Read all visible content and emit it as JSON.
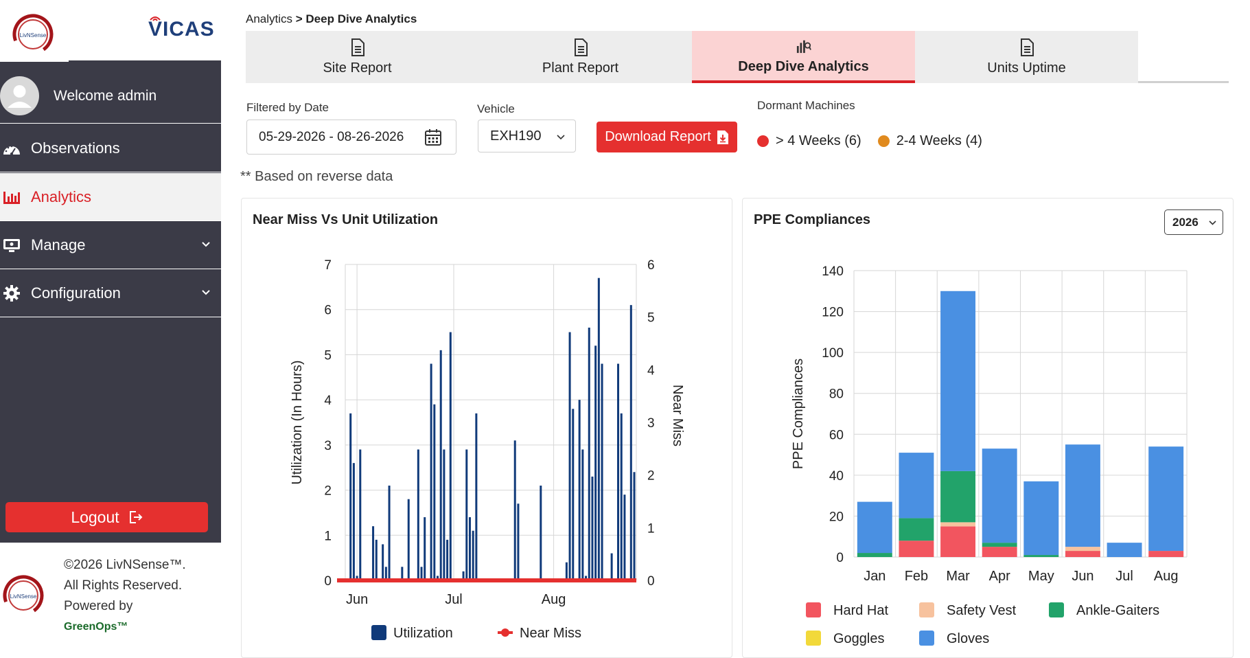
{
  "brand": {
    "logo_text": "LivNSense",
    "app_name": "VICAS"
  },
  "sidebar": {
    "welcome": "Welcome admin",
    "items": [
      {
        "label": "Observations",
        "icon": "speedometer-icon",
        "active": false
      },
      {
        "label": "Analytics",
        "icon": "bar-chart-icon",
        "active": true
      },
      {
        "label": "Manage",
        "icon": "monitor-icon",
        "active": false
      },
      {
        "label": "Configuration",
        "icon": "gear-icon",
        "active": false
      }
    ],
    "logout": "Logout",
    "footer": {
      "copyright": "©2026 LivNSense™.",
      "rights": "All Rights Reserved.",
      "powered": "Powered by",
      "greenops": "GreenOps™"
    }
  },
  "breadcrumb": {
    "parent": "Analytics",
    "separator": " > ",
    "current": "Deep Dive Analytics"
  },
  "tabs": [
    {
      "label": "Site Report",
      "active": false
    },
    {
      "label": "Plant Report",
      "active": false
    },
    {
      "label": "Deep Dive Analytics",
      "active": true
    },
    {
      "label": "Units Uptime",
      "active": false
    }
  ],
  "filters": {
    "date_label": "Filtered by Date",
    "date_value": "05-29-2026 - 08-26-2026",
    "vehicle_label": "Vehicle",
    "vehicle_value": "EXH190",
    "download": "Download Report",
    "dormant_label": "Dormant Machines",
    "dormant": [
      {
        "label": "> 4 Weeks (6)",
        "color": "#e5302f"
      },
      {
        "label": "2-4 Weeks (4)",
        "color": "#e08a1e"
      }
    ],
    "note": "** Based on reverse data"
  },
  "colors": {
    "accent": "#d92026",
    "sidebar_bg": "#3b3b47",
    "utilization": "#103a7a",
    "near_miss": "#e5302f"
  },
  "chart_data": [
    {
      "type": "bar",
      "title": "Near Miss Vs Unit Utilization",
      "ylabel": "Utilization (In Hours)",
      "y2label": "Near Miss",
      "ylim": [
        0,
        7
      ],
      "y2lim": [
        0,
        6
      ],
      "yticks": [
        "0",
        "1",
        "2",
        "3",
        "4",
        "5",
        "6",
        "7"
      ],
      "y2ticks": [
        "0",
        "1",
        "2",
        "3",
        "4",
        "5",
        "6"
      ],
      "xticks": [
        "Jun",
        "Jul",
        "Aug"
      ],
      "x_start": "2026-05-29",
      "x_end": "2026-08-26",
      "grid": true,
      "legend_position": "bottom",
      "series": [
        {
          "name": "Utilization",
          "type": "bar",
          "color": "#103a7a",
          "points": [
            {
              "date": "2026-05-30",
              "value": 3.7
            },
            {
              "date": "2026-05-31",
              "value": 2.6
            },
            {
              "date": "2026-06-01",
              "value": 0.1
            },
            {
              "date": "2026-06-02",
              "value": 2.9
            },
            {
              "date": "2026-06-06",
              "value": 1.2
            },
            {
              "date": "2026-06-07",
              "value": 0.9
            },
            {
              "date": "2026-06-09",
              "value": 0.8
            },
            {
              "date": "2026-06-10",
              "value": 0.3
            },
            {
              "date": "2026-06-11",
              "value": 2.1
            },
            {
              "date": "2026-06-15",
              "value": 0.3
            },
            {
              "date": "2026-06-17",
              "value": 1.8
            },
            {
              "date": "2026-06-20",
              "value": 2.9
            },
            {
              "date": "2026-06-21",
              "value": 0.3
            },
            {
              "date": "2026-06-22",
              "value": 1.4
            },
            {
              "date": "2026-06-24",
              "value": 4.8
            },
            {
              "date": "2026-06-25",
              "value": 3.9
            },
            {
              "date": "2026-06-26",
              "value": 0.1
            },
            {
              "date": "2026-06-27",
              "value": 5.1
            },
            {
              "date": "2026-06-28",
              "value": 2.9
            },
            {
              "date": "2026-06-29",
              "value": 0.9
            },
            {
              "date": "2026-06-30",
              "value": 5.5
            },
            {
              "date": "2026-07-04",
              "value": 0.2
            },
            {
              "date": "2026-07-05",
              "value": 2.9
            },
            {
              "date": "2026-07-06",
              "value": 1.4
            },
            {
              "date": "2026-07-07",
              "value": 1.1
            },
            {
              "date": "2026-07-08",
              "value": 3.7
            },
            {
              "date": "2026-07-20",
              "value": 3.1
            },
            {
              "date": "2026-07-21",
              "value": 1.7
            },
            {
              "date": "2026-07-28",
              "value": 2.1
            },
            {
              "date": "2026-08-05",
              "value": 0.4
            },
            {
              "date": "2026-08-06",
              "value": 5.5
            },
            {
              "date": "2026-08-07",
              "value": 3.8
            },
            {
              "date": "2026-08-09",
              "value": 4.0
            },
            {
              "date": "2026-08-10",
              "value": 2.9
            },
            {
              "date": "2026-08-11",
              "value": 0.1
            },
            {
              "date": "2026-08-12",
              "value": 5.6
            },
            {
              "date": "2026-08-13",
              "value": 2.3
            },
            {
              "date": "2026-08-14",
              "value": 5.2
            },
            {
              "date": "2026-08-15",
              "value": 6.7
            },
            {
              "date": "2026-08-16",
              "value": 4.8
            },
            {
              "date": "2026-08-19",
              "value": 0.6
            },
            {
              "date": "2026-08-21",
              "value": 4.8
            },
            {
              "date": "2026-08-22",
              "value": 3.7
            },
            {
              "date": "2026-08-23",
              "value": 1.9
            },
            {
              "date": "2026-08-25",
              "value": 6.1
            },
            {
              "date": "2026-08-26",
              "value": 2.4
            }
          ]
        },
        {
          "name": "Near Miss",
          "type": "line",
          "color": "#e5302f",
          "axis": "right",
          "constant_value": 0
        }
      ]
    },
    {
      "type": "bar",
      "stacked": true,
      "title": "PPE Compliances",
      "ylabel": "PPE Compliances",
      "ylim": [
        0,
        140
      ],
      "yticks": [
        "0",
        "20",
        "40",
        "60",
        "80",
        "100",
        "120",
        "140"
      ],
      "categories": [
        "Jan",
        "Feb",
        "Mar",
        "Apr",
        "May",
        "Jun",
        "Jul",
        "Aug"
      ],
      "grid": true,
      "legend_position": "bottom",
      "series": [
        {
          "name": "Hard Hat",
          "color": "#f2555f",
          "values": [
            0,
            8,
            15,
            5,
            0,
            3,
            0,
            3
          ]
        },
        {
          "name": "Safety Vest",
          "color": "#f7c29e",
          "values": [
            0,
            0,
            2,
            0,
            0,
            2,
            0,
            0
          ]
        },
        {
          "name": "Ankle-Gaiters",
          "color": "#22a36a",
          "values": [
            2,
            11,
            25,
            2,
            1,
            0,
            0,
            0
          ]
        },
        {
          "name": "Goggles",
          "color": "#f2d93a",
          "values": [
            0,
            0,
            0,
            0,
            0,
            0,
            0,
            0
          ]
        },
        {
          "name": "Gloves",
          "color": "#4a90e2",
          "values": [
            25,
            32,
            88,
            46,
            36,
            50,
            7,
            51
          ]
        }
      ],
      "year_select": "2026"
    }
  ]
}
